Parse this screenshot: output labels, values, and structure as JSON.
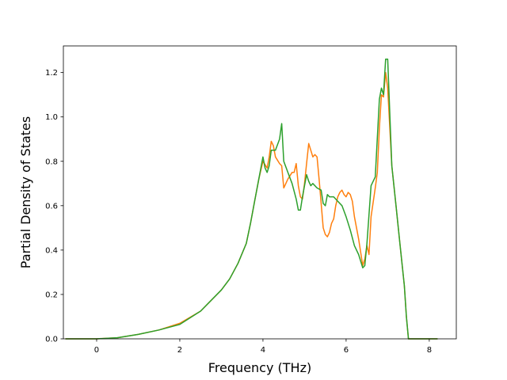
{
  "chart_data": {
    "type": "line",
    "title": "",
    "xlabel": "Frequency (THz)",
    "ylabel": "Partial Density of States",
    "xlim": [
      -0.8,
      8.65
    ],
    "ylim": [
      0.0,
      1.32
    ],
    "xticks": [
      0,
      2,
      4,
      6,
      8
    ],
    "yticks": [
      0.0,
      0.2,
      0.4,
      0.6,
      0.8,
      1.0,
      1.2
    ],
    "grid": false,
    "legend": "none",
    "series": [
      {
        "color": "#ff7f0e",
        "points": [
          [
            -0.75,
            0
          ],
          [
            0.0,
            0
          ],
          [
            0.5,
            0.005
          ],
          [
            1.0,
            0.02
          ],
          [
            1.5,
            0.04
          ],
          [
            2.0,
            0.07
          ],
          [
            2.5,
            0.125
          ],
          [
            3.0,
            0.22
          ],
          [
            3.2,
            0.27
          ],
          [
            3.4,
            0.34
          ],
          [
            3.6,
            0.43
          ],
          [
            3.7,
            0.52
          ],
          [
            3.8,
            0.62
          ],
          [
            3.9,
            0.72
          ],
          [
            4.0,
            0.8
          ],
          [
            4.1,
            0.77
          ],
          [
            4.15,
            0.82
          ],
          [
            4.2,
            0.89
          ],
          [
            4.25,
            0.87
          ],
          [
            4.3,
            0.82
          ],
          [
            4.4,
            0.79
          ],
          [
            4.45,
            0.78
          ],
          [
            4.5,
            0.68
          ],
          [
            4.6,
            0.72
          ],
          [
            4.7,
            0.75
          ],
          [
            4.75,
            0.75
          ],
          [
            4.8,
            0.79
          ],
          [
            4.85,
            0.69
          ],
          [
            4.9,
            0.64
          ],
          [
            4.95,
            0.63
          ],
          [
            5.0,
            0.7
          ],
          [
            5.05,
            0.79
          ],
          [
            5.1,
            0.88
          ],
          [
            5.15,
            0.85
          ],
          [
            5.2,
            0.82
          ],
          [
            5.25,
            0.83
          ],
          [
            5.3,
            0.82
          ],
          [
            5.35,
            0.72
          ],
          [
            5.4,
            0.61
          ],
          [
            5.45,
            0.5
          ],
          [
            5.5,
            0.47
          ],
          [
            5.55,
            0.46
          ],
          [
            5.6,
            0.48
          ],
          [
            5.65,
            0.52
          ],
          [
            5.7,
            0.54
          ],
          [
            5.75,
            0.6
          ],
          [
            5.8,
            0.64
          ],
          [
            5.85,
            0.66
          ],
          [
            5.9,
            0.67
          ],
          [
            5.95,
            0.65
          ],
          [
            6.0,
            0.64
          ],
          [
            6.05,
            0.66
          ],
          [
            6.1,
            0.65
          ],
          [
            6.15,
            0.62
          ],
          [
            6.2,
            0.55
          ],
          [
            6.3,
            0.45
          ],
          [
            6.4,
            0.33
          ],
          [
            6.45,
            0.36
          ],
          [
            6.5,
            0.42
          ],
          [
            6.55,
            0.38
          ],
          [
            6.6,
            0.55
          ],
          [
            6.7,
            0.68
          ],
          [
            6.75,
            0.75
          ],
          [
            6.8,
            0.95
          ],
          [
            6.85,
            1.1
          ],
          [
            6.9,
            1.09
          ],
          [
            6.95,
            1.2
          ],
          [
            7.0,
            1.13
          ],
          [
            7.1,
            0.78
          ],
          [
            7.2,
            0.6
          ],
          [
            7.3,
            0.42
          ],
          [
            7.4,
            0.24
          ],
          [
            7.45,
            0.1
          ],
          [
            7.5,
            0
          ],
          [
            8.2,
            0
          ]
        ]
      },
      {
        "color": "#2ca02c",
        "points": [
          [
            -0.75,
            0
          ],
          [
            0.0,
            0
          ],
          [
            0.5,
            0.005
          ],
          [
            1.0,
            0.02
          ],
          [
            1.5,
            0.04
          ],
          [
            2.0,
            0.065
          ],
          [
            2.5,
            0.125
          ],
          [
            3.0,
            0.22
          ],
          [
            3.2,
            0.27
          ],
          [
            3.4,
            0.34
          ],
          [
            3.6,
            0.43
          ],
          [
            3.7,
            0.52
          ],
          [
            3.8,
            0.62
          ],
          [
            3.9,
            0.72
          ],
          [
            4.0,
            0.82
          ],
          [
            4.05,
            0.77
          ],
          [
            4.1,
            0.75
          ],
          [
            4.15,
            0.78
          ],
          [
            4.2,
            0.85
          ],
          [
            4.3,
            0.85
          ],
          [
            4.4,
            0.9
          ],
          [
            4.45,
            0.97
          ],
          [
            4.5,
            0.8
          ],
          [
            4.6,
            0.75
          ],
          [
            4.7,
            0.7
          ],
          [
            4.8,
            0.63
          ],
          [
            4.85,
            0.58
          ],
          [
            4.9,
            0.58
          ],
          [
            4.95,
            0.64
          ],
          [
            5.0,
            0.69
          ],
          [
            5.05,
            0.74
          ],
          [
            5.1,
            0.71
          ],
          [
            5.15,
            0.69
          ],
          [
            5.2,
            0.7
          ],
          [
            5.3,
            0.68
          ],
          [
            5.4,
            0.67
          ],
          [
            5.45,
            0.61
          ],
          [
            5.5,
            0.6
          ],
          [
            5.55,
            0.65
          ],
          [
            5.6,
            0.64
          ],
          [
            5.7,
            0.64
          ],
          [
            5.8,
            0.62
          ],
          [
            5.9,
            0.6
          ],
          [
            6.0,
            0.55
          ],
          [
            6.1,
            0.49
          ],
          [
            6.2,
            0.42
          ],
          [
            6.3,
            0.38
          ],
          [
            6.4,
            0.32
          ],
          [
            6.45,
            0.33
          ],
          [
            6.5,
            0.43
          ],
          [
            6.6,
            0.69
          ],
          [
            6.7,
            0.73
          ],
          [
            6.8,
            1.08
          ],
          [
            6.85,
            1.13
          ],
          [
            6.9,
            1.1
          ],
          [
            6.95,
            1.26
          ],
          [
            7.0,
            1.26
          ],
          [
            7.1,
            0.78
          ],
          [
            7.2,
            0.6
          ],
          [
            7.3,
            0.42
          ],
          [
            7.4,
            0.24
          ],
          [
            7.45,
            0.1
          ],
          [
            7.5,
            0
          ],
          [
            8.2,
            0
          ]
        ]
      }
    ]
  }
}
